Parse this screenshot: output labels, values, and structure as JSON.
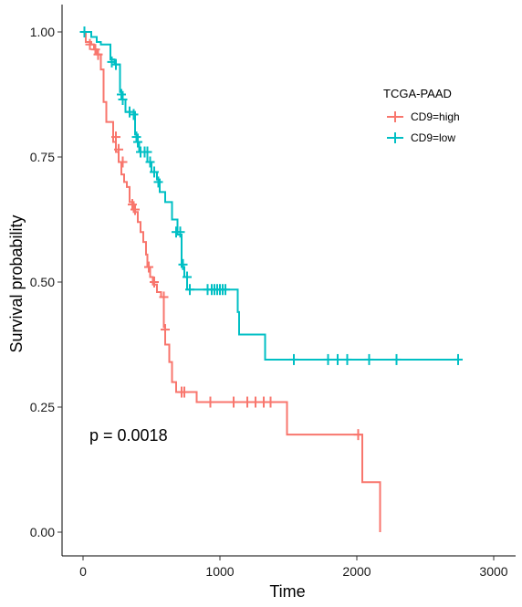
{
  "chart_data": {
    "type": "line",
    "subtype": "kaplan-meier",
    "title": "",
    "xlabel": "Time",
    "ylabel": "Survival probability",
    "xlim": [
      0,
      3000
    ],
    "ylim": [
      0,
      1
    ],
    "x_ticks": [
      0,
      1000,
      2000,
      3000
    ],
    "y_ticks": [
      0.0,
      0.25,
      0.5,
      0.75,
      1.0
    ],
    "x_tick_labels": [
      "0",
      "1000",
      "2000",
      "3000"
    ],
    "y_tick_labels": [
      "0.00",
      "0.25",
      "0.50",
      "0.75",
      "1.00"
    ],
    "grid": false,
    "legend": {
      "title": "TCGA-PAAD",
      "position": "right"
    },
    "annotation": "p = 0.0018",
    "series": [
      {
        "name": "CD9=high",
        "color": "#F8766D",
        "steps": [
          [
            0,
            1.0
          ],
          [
            20,
            0.98
          ],
          [
            60,
            0.975
          ],
          [
            80,
            0.965
          ],
          [
            100,
            0.955
          ],
          [
            130,
            0.925
          ],
          [
            150,
            0.86
          ],
          [
            170,
            0.82
          ],
          [
            220,
            0.78
          ],
          [
            240,
            0.76
          ],
          [
            260,
            0.74
          ],
          [
            280,
            0.715
          ],
          [
            300,
            0.7
          ],
          [
            320,
            0.69
          ],
          [
            340,
            0.66
          ],
          [
            370,
            0.64
          ],
          [
            400,
            0.62
          ],
          [
            420,
            0.6
          ],
          [
            440,
            0.58
          ],
          [
            460,
            0.555
          ],
          [
            470,
            0.53
          ],
          [
            490,
            0.51
          ],
          [
            510,
            0.495
          ],
          [
            540,
            0.48
          ],
          [
            570,
            0.47
          ],
          [
            590,
            0.41
          ],
          [
            600,
            0.375
          ],
          [
            630,
            0.34
          ],
          [
            650,
            0.3
          ],
          [
            680,
            0.28
          ],
          [
            780,
            0.28
          ],
          [
            830,
            0.26
          ],
          [
            1000,
            0.26
          ],
          [
            1490,
            0.195
          ],
          [
            2030,
            0.195
          ],
          [
            2040,
            0.1
          ],
          [
            2170,
            0.0
          ]
        ],
        "censored": [
          [
            50,
            0.975
          ],
          [
            90,
            0.965
          ],
          [
            110,
            0.955
          ],
          [
            240,
            0.79
          ],
          [
            260,
            0.765
          ],
          [
            290,
            0.74
          ],
          [
            360,
            0.655
          ],
          [
            380,
            0.645
          ],
          [
            480,
            0.53
          ],
          [
            520,
            0.5
          ],
          [
            590,
            0.47
          ],
          [
            600,
            0.405
          ],
          [
            720,
            0.28
          ],
          [
            740,
            0.28
          ],
          [
            930,
            0.26
          ],
          [
            1100,
            0.26
          ],
          [
            1200,
            0.26
          ],
          [
            1260,
            0.26
          ],
          [
            1320,
            0.26
          ],
          [
            1370,
            0.26
          ],
          [
            2010,
            0.195
          ]
        ]
      },
      {
        "name": "CD9=low",
        "color": "#00BFC4",
        "steps": [
          [
            0,
            1.0
          ],
          [
            60,
            0.99
          ],
          [
            100,
            0.98
          ],
          [
            130,
            0.975
          ],
          [
            200,
            0.945
          ],
          [
            230,
            0.935
          ],
          [
            270,
            0.88
          ],
          [
            290,
            0.865
          ],
          [
            310,
            0.84
          ],
          [
            350,
            0.84
          ],
          [
            380,
            0.795
          ],
          [
            400,
            0.78
          ],
          [
            410,
            0.76
          ],
          [
            470,
            0.74
          ],
          [
            500,
            0.72
          ],
          [
            540,
            0.705
          ],
          [
            560,
            0.68
          ],
          [
            600,
            0.66
          ],
          [
            650,
            0.625
          ],
          [
            690,
            0.595
          ],
          [
            720,
            0.53
          ],
          [
            740,
            0.51
          ],
          [
            760,
            0.485
          ],
          [
            1060,
            0.485
          ],
          [
            1130,
            0.44
          ],
          [
            1140,
            0.395
          ],
          [
            1330,
            0.345
          ],
          [
            2740,
            0.345
          ]
        ],
        "censored": [
          [
            10,
            1.0
          ],
          [
            210,
            0.94
          ],
          [
            240,
            0.935
          ],
          [
            280,
            0.875
          ],
          [
            290,
            0.865
          ],
          [
            340,
            0.84
          ],
          [
            370,
            0.835
          ],
          [
            390,
            0.79
          ],
          [
            400,
            0.78
          ],
          [
            420,
            0.76
          ],
          [
            450,
            0.76
          ],
          [
            470,
            0.76
          ],
          [
            490,
            0.74
          ],
          [
            520,
            0.72
          ],
          [
            550,
            0.7
          ],
          [
            680,
            0.6
          ],
          [
            710,
            0.6
          ],
          [
            730,
            0.535
          ],
          [
            760,
            0.51
          ],
          [
            780,
            0.485
          ],
          [
            910,
            0.485
          ],
          [
            940,
            0.485
          ],
          [
            960,
            0.485
          ],
          [
            980,
            0.485
          ],
          [
            1000,
            0.485
          ],
          [
            1020,
            0.485
          ],
          [
            1040,
            0.485
          ],
          [
            1540,
            0.345
          ],
          [
            1790,
            0.345
          ],
          [
            1860,
            0.345
          ],
          [
            1930,
            0.345
          ],
          [
            2090,
            0.345
          ],
          [
            2290,
            0.345
          ],
          [
            2740,
            0.345
          ]
        ]
      }
    ]
  }
}
